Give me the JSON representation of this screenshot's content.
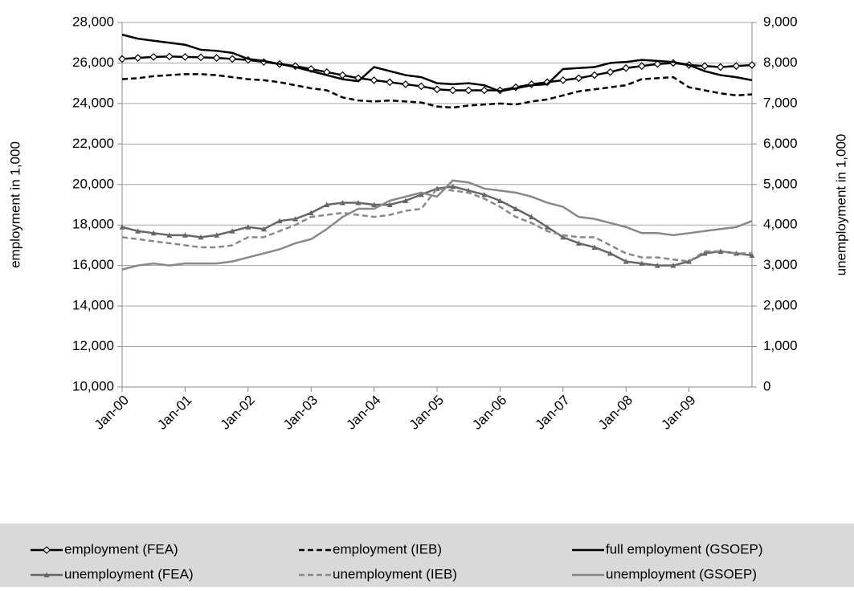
{
  "chart_data": {
    "type": "line",
    "y_label": "employment in 1,000",
    "y2_label": "unemployment in 1,000",
    "categories": [
      "Jan-00",
      null,
      null,
      null,
      "Jan-01",
      null,
      null,
      null,
      "Jan-02",
      null,
      null,
      null,
      "Jan-03",
      null,
      null,
      null,
      "Jan-04",
      null,
      null,
      null,
      "Jan-05",
      null,
      null,
      null,
      "Jan-06",
      null,
      null,
      null,
      "Jan-07",
      null,
      null,
      null,
      "Jan-08",
      null,
      null,
      null,
      "Jan-09",
      null,
      null,
      null,
      null
    ],
    "ylim": [
      10000,
      28000
    ],
    "yticks": [
      {
        "value": 10000,
        "label": "10,000"
      },
      {
        "value": 12000,
        "label": "12,000"
      },
      {
        "value": 14000,
        "label": "14,000"
      },
      {
        "value": 16000,
        "label": "16,000"
      },
      {
        "value": 18000,
        "label": "18,000"
      },
      {
        "value": 20000,
        "label": "20,000"
      },
      {
        "value": 22000,
        "label": "22,000"
      },
      {
        "value": 24000,
        "label": "24,000"
      },
      {
        "value": 26000,
        "label": "26,000"
      },
      {
        "value": 28000,
        "label": "28,000"
      }
    ],
    "y2lim": [
      0,
      9000
    ],
    "y2ticks": [
      0,
      {
        "value": 1000,
        "label": "1,000"
      },
      {
        "value": 2000,
        "label": "2,000"
      },
      {
        "value": 3000,
        "label": "3,000"
      },
      {
        "value": 4000,
        "label": "4,000"
      },
      {
        "value": 5000,
        "label": "5,000"
      },
      {
        "value": 6000,
        "label": "6,000"
      },
      {
        "value": 7000,
        "label": "7,000"
      },
      {
        "value": 8000,
        "label": "8,000"
      },
      {
        "value": 9000,
        "label": "9,000"
      }
    ],
    "grid": true,
    "legend": "bottom",
    "series": [
      {
        "name": "employment (FEA)",
        "color": "#000000",
        "dashed": false,
        "marker": "diamond",
        "values": [
          26200,
          26250,
          26300,
          26320,
          26300,
          26280,
          26250,
          26200,
          26150,
          26050,
          25950,
          25850,
          25700,
          25550,
          25400,
          25250,
          25150,
          25050,
          24950,
          24850,
          24700,
          24650,
          24650,
          24650,
          24650,
          24800,
          24950,
          25050,
          25150,
          25250,
          25400,
          25550,
          25750,
          25850,
          25950,
          26000,
          25900,
          25850,
          25800,
          25850,
          25900
        ]
      },
      {
        "name": "employment (IEB)",
        "color": "#000000",
        "dashed": true,
        "values": [
          25200,
          25250,
          25350,
          25400,
          25450,
          25450,
          25400,
          25300,
          25200,
          25150,
          25050,
          24900,
          24750,
          24650,
          24300,
          24150,
          24100,
          24150,
          24100,
          24050,
          23850,
          23800,
          23900,
          23950,
          24000,
          23950,
          24100,
          24200,
          24400,
          24600,
          24700,
          24800,
          24900,
          25200,
          25250,
          25300,
          24800,
          24650,
          24500,
          24400,
          24450
        ]
      },
      {
        "name": "full employment (GSOEP)",
        "color": "#000000",
        "dashed": false,
        "values": [
          27400,
          27200,
          27100,
          27000,
          26900,
          26650,
          26600,
          26500,
          26200,
          26100,
          25950,
          25800,
          25600,
          25400,
          25200,
          25100,
          25800,
          25600,
          25400,
          25300,
          25000,
          24950,
          25000,
          24900,
          24600,
          24750,
          24900,
          24950,
          25700,
          25750,
          25800,
          26000,
          26050,
          26150,
          26100,
          26050,
          25900,
          25600,
          25400,
          25300,
          25150
        ]
      },
      {
        "name": "unemployment (FEA)",
        "color": "#666666",
        "dashed": false,
        "marker": "triangle",
        "axis": "y2",
        "values": [
          3950,
          3850,
          3800,
          3750,
          3750,
          3700,
          3750,
          3850,
          3950,
          3900,
          4100,
          4150,
          4300,
          4500,
          4550,
          4550,
          4500,
          4500,
          4600,
          4750,
          4900,
          4950,
          4850,
          4750,
          4600,
          4400,
          4200,
          3950,
          3700,
          3550,
          3450,
          3300,
          3100,
          3050,
          3000,
          3000,
          3100,
          3300,
          3350,
          3300,
          3250
        ]
      },
      {
        "name": "unemployment (IEB)",
        "color": "#888888",
        "dashed": true,
        "axis": "y2",
        "values": [
          3700,
          3650,
          3600,
          3550,
          3500,
          3450,
          3450,
          3500,
          3700,
          3700,
          3850,
          4000,
          4200,
          4250,
          4300,
          4250,
          4200,
          4250,
          4350,
          4400,
          4900,
          4850,
          4800,
          4650,
          4450,
          4200,
          4050,
          3850,
          3750,
          3700,
          3700,
          3500,
          3300,
          3200,
          3200,
          3150,
          3100,
          3350,
          3350,
          3300,
          3300
        ]
      },
      {
        "name": "unemployment (GSOEP)",
        "color": "#888888",
        "dashed": false,
        "axis": "y2",
        "values": [
          2900,
          3000,
          3050,
          3000,
          3050,
          3050,
          3050,
          3100,
          3200,
          3300,
          3400,
          3550,
          3650,
          3900,
          4200,
          4400,
          4400,
          4600,
          4700,
          4800,
          4700,
          5100,
          5050,
          4900,
          4850,
          4800,
          4700,
          4550,
          4450,
          4200,
          4150,
          4050,
          3950,
          3800,
          3800,
          3750,
          3800,
          3850,
          3900,
          3950,
          4100
        ]
      }
    ]
  }
}
